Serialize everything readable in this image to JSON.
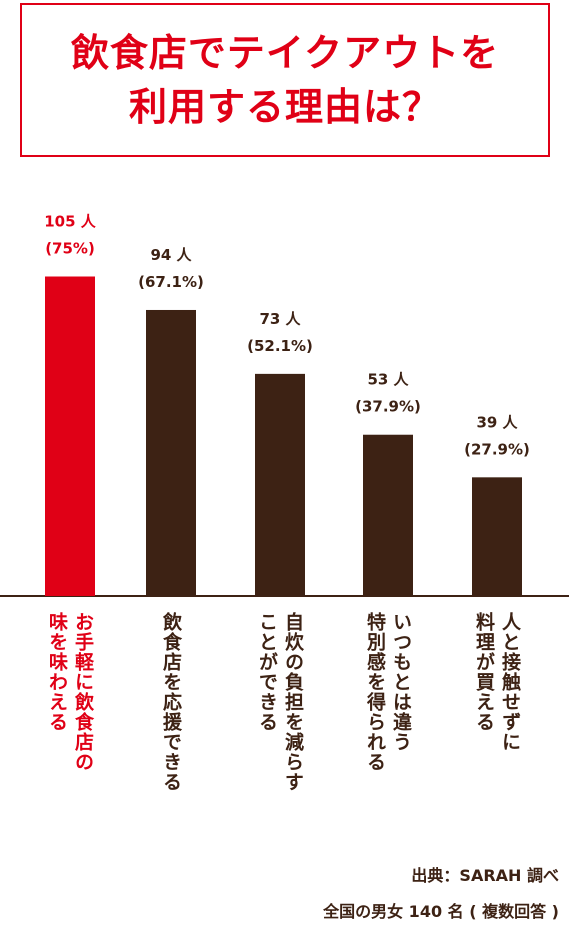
{
  "title": {
    "line1": "飲食店でテイクアウトを",
    "line2": "利用する理由は？"
  },
  "colors": {
    "accent": "#e00016",
    "bar": "#3d2214",
    "text": "#3d2214"
  },
  "chart_data": {
    "type": "bar",
    "title": "飲食店でテイクアウトを利用する理由は？",
    "ylim": [
      0,
      140
    ],
    "categories": [
      {
        "line1": "お手軽に飲食店の",
        "line2": "味を味わえる"
      },
      {
        "line1": "飲食店を応援できる",
        "line2": ""
      },
      {
        "line1": "自炊の負担を減らす",
        "line2": "ことができる"
      },
      {
        "line1": "いつもとは違う",
        "line2": "特別感を得られる"
      },
      {
        "line1": "人と接触せずに",
        "line2": "料理が買える"
      }
    ],
    "values": [
      105,
      94,
      73,
      53,
      39
    ],
    "value_labels": [
      "105 人",
      "94 人",
      "73 人",
      "53 人",
      "39 人"
    ],
    "percent_labels": [
      "(75%)",
      "(67.1%)",
      "(52.1%)",
      "(37.9%)",
      "(27.9%)"
    ],
    "highlight_index": 0
  },
  "source": {
    "credit": "出典：SARAH 調べ",
    "sample": "全国の男女 140 名 ( 複数回答 )"
  }
}
